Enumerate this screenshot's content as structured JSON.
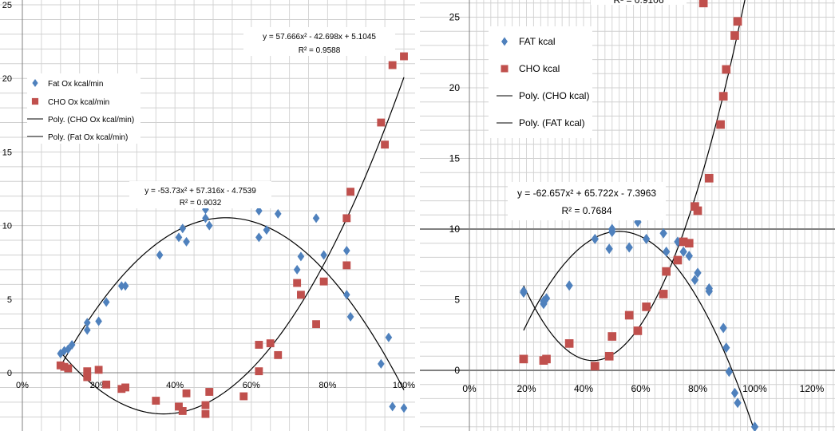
{
  "chart_data": [
    {
      "type": "scatter",
      "xlim": [
        0,
        1
      ],
      "ylim": [
        -3,
        25
      ],
      "x_ticks": [
        "0%",
        "20%",
        "40%",
        "60%",
        "80%",
        "100%"
      ],
      "y_ticks": [
        "0",
        "5",
        "10",
        "15",
        "20",
        "25"
      ],
      "grid": true,
      "legend_position": "upper-left",
      "legend": [
        "Fat Ox kcal/min",
        "CHO Ox kcal/min",
        "Poly. (CHO Ox kcal/min)",
        "Poly. (Fat Ox kcal/min)"
      ],
      "annotations": [
        {
          "line1": "y = 57.666x² - 42.698x + 5.1045",
          "line2": "R² = 0.9588"
        },
        {
          "line1": "y = -53.73x² + 57.316x - 4.7539",
          "line2": "R² = 0.9032"
        }
      ],
      "series": [
        {
          "name": "Fat Ox kcal/min",
          "color": "#4f81bd",
          "marker": "diamond",
          "points": [
            [
              0.1,
              1.3
            ],
            [
              0.11,
              1.5
            ],
            [
              0.12,
              1.6
            ],
            [
              0.13,
              1.9
            ],
            [
              0.17,
              2.9
            ],
            [
              0.17,
              3.4
            ],
            [
              0.2,
              3.5
            ],
            [
              0.22,
              4.8
            ],
            [
              0.26,
              5.9
            ],
            [
              0.27,
              5.9
            ],
            [
              0.36,
              8.0
            ],
            [
              0.41,
              9.2
            ],
            [
              0.42,
              9.8
            ],
            [
              0.43,
              8.9
            ],
            [
              0.48,
              11.1
            ],
            [
              0.48,
              10.5
            ],
            [
              0.49,
              10.0
            ],
            [
              0.62,
              11.0
            ],
            [
              0.62,
              9.2
            ],
            [
              0.64,
              9.7
            ],
            [
              0.67,
              10.8
            ],
            [
              0.72,
              7.0
            ],
            [
              0.73,
              7.9
            ],
            [
              0.77,
              10.5
            ],
            [
              0.79,
              8.0
            ],
            [
              0.85,
              8.3
            ],
            [
              0.85,
              5.3
            ],
            [
              0.86,
              3.8
            ],
            [
              0.94,
              0.6
            ],
            [
              0.96,
              2.4
            ],
            [
              0.97,
              -2.3
            ],
            [
              1.0,
              -2.4
            ]
          ]
        },
        {
          "name": "CHO Ox kcal/min",
          "color": "#c0504d",
          "marker": "square",
          "points": [
            [
              0.1,
              0.5
            ],
            [
              0.11,
              0.4
            ],
            [
              0.12,
              0.3
            ],
            [
              0.17,
              0.1
            ],
            [
              0.17,
              -0.3
            ],
            [
              0.2,
              0.2
            ],
            [
              0.22,
              -0.8
            ],
            [
              0.26,
              -1.1
            ],
            [
              0.27,
              -1.0
            ],
            [
              0.35,
              -1.9
            ],
            [
              0.41,
              -2.3
            ],
            [
              0.42,
              -2.6
            ],
            [
              0.43,
              -1.4
            ],
            [
              0.48,
              -2.2
            ],
            [
              0.48,
              -2.8
            ],
            [
              0.49,
              -1.3
            ],
            [
              0.58,
              -1.6
            ],
            [
              0.62,
              1.9
            ],
            [
              0.62,
              0.1
            ],
            [
              0.65,
              2.0
            ],
            [
              0.67,
              1.2
            ],
            [
              0.72,
              6.1
            ],
            [
              0.73,
              5.3
            ],
            [
              0.77,
              3.3
            ],
            [
              0.79,
              6.2
            ],
            [
              0.85,
              10.5
            ],
            [
              0.86,
              12.3
            ],
            [
              0.85,
              7.3
            ],
            [
              0.94,
              17.0
            ],
            [
              0.95,
              15.5
            ],
            [
              0.97,
              20.9
            ],
            [
              1.0,
              21.5
            ]
          ]
        },
        {
          "name": "Poly. (CHO Ox kcal/min)",
          "color": "#000000",
          "type": "trendline",
          "coefficients": [
            57.666,
            -42.698,
            5.1045
          ],
          "x_range": [
            0.1,
            1.0
          ]
        },
        {
          "name": "Poly. (Fat Ox kcal/min)",
          "color": "#000000",
          "type": "trendline",
          "coefficients": [
            -53.73,
            57.316,
            -4.7539
          ],
          "x_range": [
            0.1,
            1.0
          ]
        }
      ]
    },
    {
      "type": "scatter",
      "xlim": [
        0,
        1.2
      ],
      "ylim": [
        -4,
        26
      ],
      "x_ticks": [
        "0%",
        "20%",
        "40%",
        "60%",
        "80%",
        "100%",
        "120%"
      ],
      "y_ticks": [
        "0",
        "5",
        "10",
        "15",
        "20",
        "25"
      ],
      "grid": true,
      "legend_position": "upper-left",
      "legend": [
        "FAT kcal",
        "CHO kcal",
        "Poly. (CHO kcal)",
        "Poly. (FAT kcal)"
      ],
      "annotations": [
        {
          "line1": "",
          "line2": "R² = 0.9106"
        },
        {
          "line1": "y = -62.657x² + 65.722x - 7.3963",
          "line2": "R² = 0.7684"
        }
      ],
      "series": [
        {
          "name": "FAT kcal",
          "color": "#4f81bd",
          "marker": "diamond",
          "points": [
            [
              0.19,
              5.5
            ],
            [
              0.19,
              5.6
            ],
            [
              0.26,
              4.7
            ],
            [
              0.26,
              4.9
            ],
            [
              0.27,
              5.1
            ],
            [
              0.35,
              6.0
            ],
            [
              0.44,
              9.3
            ],
            [
              0.49,
              8.6
            ],
            [
              0.5,
              9.8
            ],
            [
              0.5,
              10.0
            ],
            [
              0.56,
              8.7
            ],
            [
              0.59,
              10.5
            ],
            [
              0.62,
              9.3
            ],
            [
              0.68,
              9.7
            ],
            [
              0.69,
              8.4
            ],
            [
              0.73,
              9.1
            ],
            [
              0.75,
              8.4
            ],
            [
              0.77,
              8.1
            ],
            [
              0.79,
              6.4
            ],
            [
              0.8,
              6.9
            ],
            [
              0.84,
              5.8
            ],
            [
              0.84,
              5.6
            ],
            [
              0.89,
              3.0
            ],
            [
              0.9,
              1.6
            ],
            [
              0.91,
              -0.1
            ],
            [
              0.93,
              -1.6
            ],
            [
              0.94,
              -2.3
            ],
            [
              1.0,
              -4.0
            ]
          ]
        },
        {
          "name": "CHO kcal",
          "color": "#c0504d",
          "marker": "square",
          "points": [
            [
              0.19,
              0.8
            ],
            [
              0.26,
              0.7
            ],
            [
              0.27,
              0.8
            ],
            [
              0.35,
              1.9
            ],
            [
              0.44,
              0.3
            ],
            [
              0.49,
              1.0
            ],
            [
              0.5,
              2.4
            ],
            [
              0.56,
              3.9
            ],
            [
              0.59,
              2.8
            ],
            [
              0.62,
              4.5
            ],
            [
              0.68,
              5.4
            ],
            [
              0.69,
              7.0
            ],
            [
              0.73,
              7.8
            ],
            [
              0.75,
              9.1
            ],
            [
              0.77,
              9.0
            ],
            [
              0.79,
              11.6
            ],
            [
              0.8,
              11.3
            ],
            [
              0.82,
              26.0
            ],
            [
              0.84,
              13.6
            ],
            [
              0.88,
              17.4
            ],
            [
              0.89,
              19.4
            ],
            [
              0.9,
              21.3
            ],
            [
              0.93,
              23.7
            ],
            [
              0.94,
              24.7
            ]
          ]
        },
        {
          "name": "Poly. (CHO kcal)",
          "color": "#000000",
          "type": "trendline",
          "coefficients": [
            90.0,
            -77.9,
            17.55
          ],
          "x_range": [
            0.19,
            1.0
          ]
        },
        {
          "name": "Poly. (FAT kcal)",
          "color": "#000000",
          "type": "trendline",
          "coefficients": [
            -62.657,
            65.722,
            -7.3963
          ],
          "x_range": [
            0.19,
            1.0
          ]
        }
      ]
    }
  ]
}
